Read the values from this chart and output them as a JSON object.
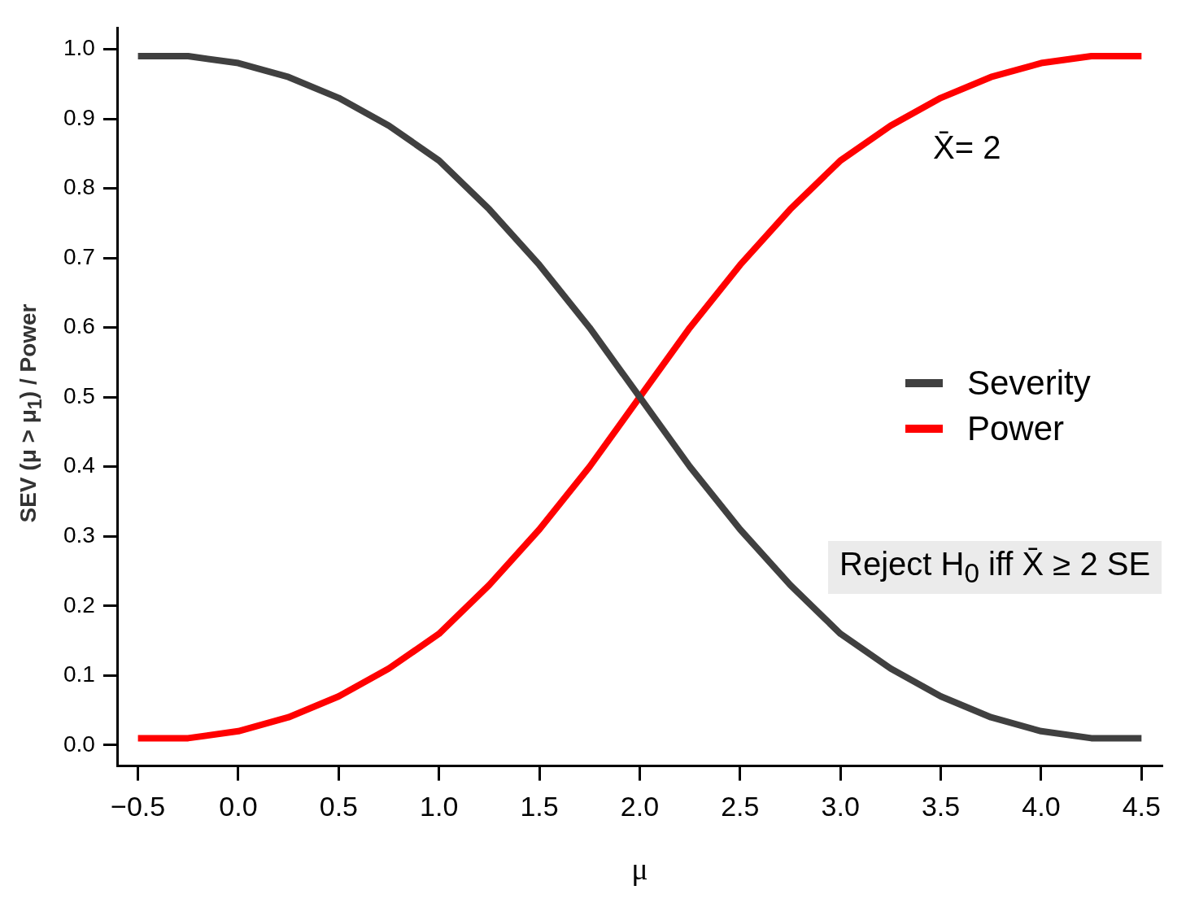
{
  "chart_data": {
    "type": "line",
    "xlabel": "μ",
    "ylabel": "SEV (μ > μ$_{1}$) / Power",
    "x": [
      -0.5,
      -0.25,
      0,
      0.25,
      0.5,
      0.75,
      1,
      1.25,
      1.5,
      1.75,
      2,
      2.25,
      2.5,
      2.75,
      3,
      3.25,
      3.5,
      3.75,
      4,
      4.25,
      4.5
    ],
    "series": [
      {
        "name": "Severity",
        "color": "#404040",
        "values": [
          0.99,
          0.99,
          0.98,
          0.96,
          0.93,
          0.89,
          0.84,
          0.77,
          0.69,
          0.6,
          0.5,
          0.4,
          0.31,
          0.23,
          0.16,
          0.11,
          0.07,
          0.04,
          0.02,
          0.01,
          0.01
        ]
      },
      {
        "name": "Power",
        "color": "#ff0000",
        "values": [
          0.01,
          0.01,
          0.02,
          0.04,
          0.07,
          0.11,
          0.16,
          0.23,
          0.31,
          0.4,
          0.5,
          0.6,
          0.69,
          0.77,
          0.84,
          0.89,
          0.93,
          0.96,
          0.98,
          0.99,
          0.99
        ]
      }
    ],
    "xlim": [
      -0.6,
      4.6
    ],
    "xticks": [
      {
        "value": -0.5,
        "label": "−0.5"
      },
      {
        "value": 0,
        "label": "0.0"
      },
      {
        "value": 0.5,
        "label": "0.5"
      },
      {
        "value": 1,
        "label": "1.0"
      },
      {
        "value": 1.5,
        "label": "1.5"
      },
      {
        "value": 2,
        "label": "2.0"
      },
      {
        "value": 2.5,
        "label": "2.5"
      },
      {
        "value": 3,
        "label": "3.0"
      },
      {
        "value": 3.5,
        "label": "3.5"
      },
      {
        "value": 4,
        "label": "4.0"
      },
      {
        "value": 4.5,
        "label": "4.5"
      }
    ],
    "ylim": [
      -0.03,
      1.03
    ],
    "yticks": [
      {
        "value": 0,
        "label": "0.0"
      },
      {
        "value": 0.1,
        "label": "0.1"
      },
      {
        "value": 0.2,
        "label": "0.2"
      },
      {
        "value": 0.3,
        "label": "0.3"
      },
      {
        "value": 0.4,
        "label": "0.4"
      },
      {
        "value": 0.5,
        "label": "0.5"
      },
      {
        "value": 0.6,
        "label": "0.6"
      },
      {
        "value": 0.7,
        "label": "0.7"
      },
      {
        "value": 0.8,
        "label": "0.8"
      },
      {
        "value": 0.9,
        "label": "0.9"
      },
      {
        "value": 1,
        "label": "1.0"
      }
    ],
    "grid": false,
    "legend": "right",
    "marker": "none",
    "line_style": "solid",
    "annotations": [
      "X̄= 2",
      "Reject H$_{0}$ iff X̄ ≥ 2 SE"
    ]
  }
}
